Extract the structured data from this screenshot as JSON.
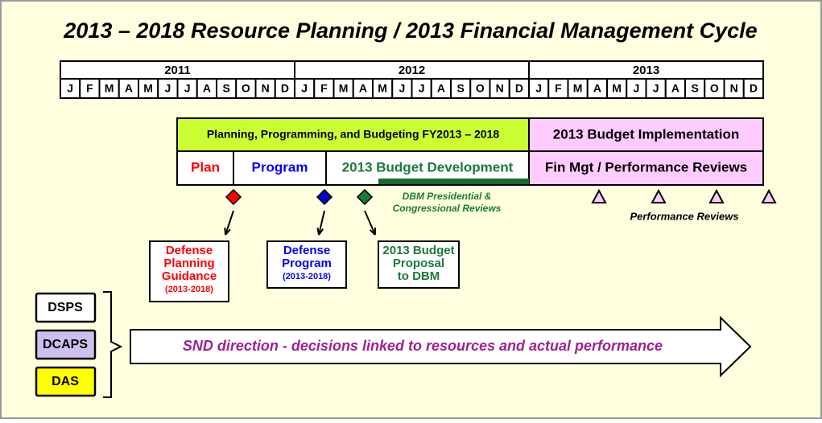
{
  "title": "2013 – 2018 Resource Planning / 2013 Financial Management Cycle",
  "timeline": {
    "years": [
      {
        "label": "2011",
        "months": [
          "J",
          "F",
          "M",
          "A",
          "M",
          "J",
          "J",
          "A",
          "S",
          "O",
          "N",
          "D"
        ]
      },
      {
        "label": "2012",
        "months": [
          "J",
          "F",
          "M",
          "A",
          "M",
          "J",
          "J",
          "A",
          "S",
          "O",
          "N",
          "D"
        ]
      },
      {
        "label": "2013",
        "months": [
          "J",
          "F",
          "M",
          "A",
          "M",
          "J",
          "J",
          "A",
          "S",
          "O",
          "N",
          "D"
        ]
      }
    ]
  },
  "phases": {
    "top": [
      "Planning, Programming, and Budgeting FY2013 – 2018",
      "2013 Budget Implementation"
    ],
    "bottom": [
      "Plan",
      "Program",
      "2013 Budget Development",
      "Fin Mgt / Performance Reviews"
    ]
  },
  "milestones": {
    "dbm_reviews": [
      "DBM Presidential &",
      "Congressional Reviews"
    ],
    "performance_reviews": "Performance Reviews"
  },
  "outputs": [
    {
      "lines": [
        "Defense",
        "Planning",
        "Guidance"
      ],
      "sub": "(2013-2018)"
    },
    {
      "lines": [
        "Defense",
        "Program"
      ],
      "sub": "(2013-2018)"
    },
    {
      "lines": [
        "2013 Budget",
        "Proposal",
        "to DBM"
      ]
    }
  ],
  "organizations": [
    "DSPS",
    "DCAPS",
    "DAS"
  ],
  "direction": "SND direction - decisions linked to resources and actual performance"
}
